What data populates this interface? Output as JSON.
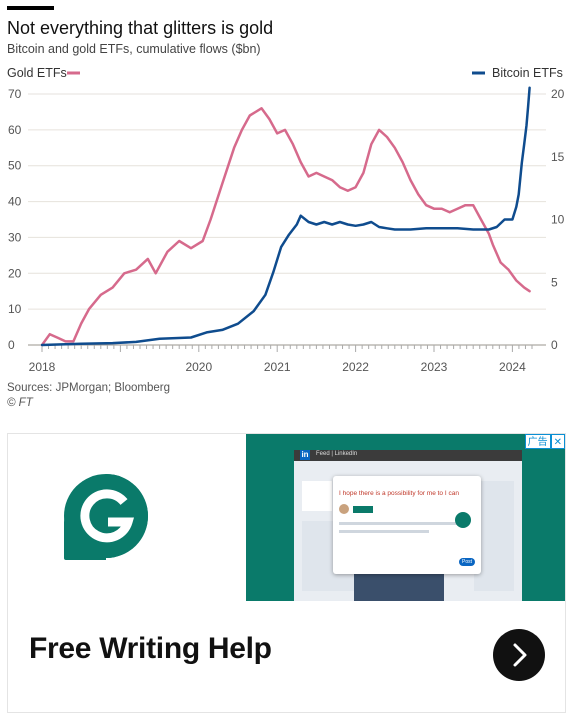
{
  "header": {
    "title": "Not everything that glitters is gold",
    "subtitle": "Bitcoin and gold ETFs, cumulative flows ($bn)"
  },
  "legend": {
    "gold_label": "Gold ETFs",
    "bitcoin_label": "Bitcoin ETFs"
  },
  "colors": {
    "gold": "#d66a8c",
    "bitcoin": "#0f4c8e",
    "grid": "#e6e2dc",
    "teal": "#0a7a6a"
  },
  "chart_data": {
    "type": "line",
    "title": "Not everything that glitters is gold",
    "subtitle": "Bitcoin and gold ETFs, cumulative flows ($bn)",
    "x_ticks": [
      "2018",
      "2020",
      "2021",
      "2022",
      "2023",
      "2024"
    ],
    "x_range": [
      2018.0,
      2024.25
    ],
    "y_left_ticks": [
      "0",
      "10",
      "20",
      "30",
      "40",
      "50",
      "60",
      "70"
    ],
    "y_left_range": [
      0,
      70
    ],
    "y_right_ticks": [
      "0",
      "5",
      "10",
      "15",
      "20"
    ],
    "y_right_range": [
      0,
      20
    ],
    "legend_placement": "top",
    "grid": "horizontal",
    "series": [
      {
        "name": "Gold ETFs",
        "axis": "left",
        "color": "#d66a8c",
        "points": [
          [
            2018.0,
            0
          ],
          [
            2018.1,
            3
          ],
          [
            2018.2,
            2
          ],
          [
            2018.3,
            1
          ],
          [
            2018.4,
            1
          ],
          [
            2018.5,
            6
          ],
          [
            2018.6,
            10
          ],
          [
            2018.75,
            14
          ],
          [
            2018.9,
            16
          ],
          [
            2019.05,
            20
          ],
          [
            2019.2,
            21
          ],
          [
            2019.35,
            24
          ],
          [
            2019.45,
            20
          ],
          [
            2019.6,
            26
          ],
          [
            2019.75,
            29
          ],
          [
            2019.9,
            27
          ],
          [
            2020.05,
            29
          ],
          [
            2020.15,
            35
          ],
          [
            2020.3,
            45
          ],
          [
            2020.45,
            55
          ],
          [
            2020.55,
            60
          ],
          [
            2020.65,
            64
          ],
          [
            2020.8,
            66
          ],
          [
            2020.9,
            63
          ],
          [
            2021.0,
            59
          ],
          [
            2021.1,
            60
          ],
          [
            2021.2,
            56
          ],
          [
            2021.3,
            51
          ],
          [
            2021.4,
            47
          ],
          [
            2021.5,
            48
          ],
          [
            2021.6,
            47
          ],
          [
            2021.7,
            46
          ],
          [
            2021.8,
            44
          ],
          [
            2021.9,
            43
          ],
          [
            2022.0,
            44
          ],
          [
            2022.1,
            48
          ],
          [
            2022.2,
            56
          ],
          [
            2022.3,
            60
          ],
          [
            2022.4,
            58
          ],
          [
            2022.5,
            55
          ],
          [
            2022.6,
            51
          ],
          [
            2022.7,
            46
          ],
          [
            2022.8,
            42
          ],
          [
            2022.9,
            39
          ],
          [
            2023.0,
            38
          ],
          [
            2023.1,
            38
          ],
          [
            2023.2,
            37
          ],
          [
            2023.3,
            38
          ],
          [
            2023.4,
            39
          ],
          [
            2023.5,
            39
          ],
          [
            2023.6,
            35
          ],
          [
            2023.7,
            31
          ],
          [
            2023.75,
            28
          ],
          [
            2023.85,
            23
          ],
          [
            2023.95,
            21
          ],
          [
            2024.05,
            18
          ],
          [
            2024.15,
            16
          ],
          [
            2024.22,
            15
          ]
        ]
      },
      {
        "name": "Bitcoin ETFs",
        "axis": "right",
        "color": "#0f4c8e",
        "points": [
          [
            2018.0,
            0.0
          ],
          [
            2018.5,
            0.1
          ],
          [
            2018.9,
            0.15
          ],
          [
            2019.2,
            0.25
          ],
          [
            2019.5,
            0.5
          ],
          [
            2019.9,
            0.6
          ],
          [
            2020.1,
            1.0
          ],
          [
            2020.3,
            1.2
          ],
          [
            2020.5,
            1.7
          ],
          [
            2020.7,
            2.7
          ],
          [
            2020.85,
            4.0
          ],
          [
            2020.95,
            5.8
          ],
          [
            2021.05,
            7.8
          ],
          [
            2021.15,
            8.8
          ],
          [
            2021.25,
            9.6
          ],
          [
            2021.3,
            10.3
          ],
          [
            2021.4,
            9.8
          ],
          [
            2021.5,
            9.6
          ],
          [
            2021.6,
            9.8
          ],
          [
            2021.7,
            9.6
          ],
          [
            2021.8,
            9.8
          ],
          [
            2021.9,
            9.6
          ],
          [
            2022.0,
            9.5
          ],
          [
            2022.1,
            9.6
          ],
          [
            2022.2,
            9.8
          ],
          [
            2022.3,
            9.4
          ],
          [
            2022.4,
            9.3
          ],
          [
            2022.5,
            9.2
          ],
          [
            2022.7,
            9.2
          ],
          [
            2022.9,
            9.3
          ],
          [
            2023.1,
            9.3
          ],
          [
            2023.3,
            9.3
          ],
          [
            2023.5,
            9.2
          ],
          [
            2023.7,
            9.2
          ],
          [
            2023.8,
            9.4
          ],
          [
            2023.9,
            10.0
          ],
          [
            2024.0,
            10.0
          ],
          [
            2024.05,
            11.0
          ],
          [
            2024.08,
            12.0
          ],
          [
            2024.12,
            14.5
          ],
          [
            2024.15,
            16.0
          ],
          [
            2024.18,
            17.5
          ],
          [
            2024.2,
            19.0
          ],
          [
            2024.22,
            20.5
          ]
        ]
      }
    ]
  },
  "footer": {
    "source": "Sources: JPMorgan; Bloomberg",
    "copyright": "© FT"
  },
  "ad": {
    "badge_label": "广告",
    "close_label": "✕",
    "headline": "Free Writing Help",
    "brand_icon": "grammarly-g-icon",
    "cta_icon": "chevron-right-icon",
    "preview": {
      "app_tab": "Feed | LinkedIn",
      "sample_text": "I hope there is a possibility for me to I can",
      "button_label": "Post"
    }
  }
}
